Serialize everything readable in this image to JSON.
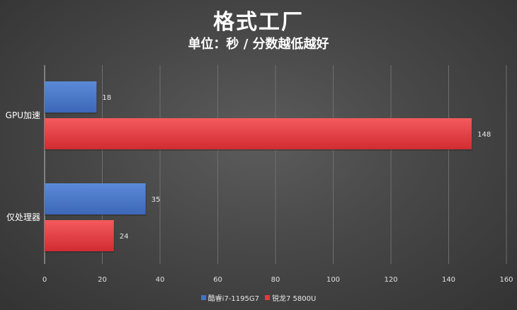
{
  "chart_data": {
    "type": "bar",
    "orientation": "horizontal",
    "title": "格式工厂",
    "subtitle": "单位：秒 / 分数越低越好",
    "categories": [
      "GPU加速",
      "仅处理器"
    ],
    "series": [
      {
        "name": "酷睿i7-1195G7",
        "values": [
          18,
          35
        ],
        "color": "#4472c4"
      },
      {
        "name": "锐龙7 5800U",
        "values": [
          148,
          24
        ],
        "color": "#e8383d"
      }
    ],
    "xlim": [
      0,
      160
    ],
    "xticks": [
      "0",
      "20",
      "40",
      "60",
      "80",
      "100",
      "120",
      "140",
      "160"
    ],
    "grid": true,
    "legend_position": "bottom"
  }
}
